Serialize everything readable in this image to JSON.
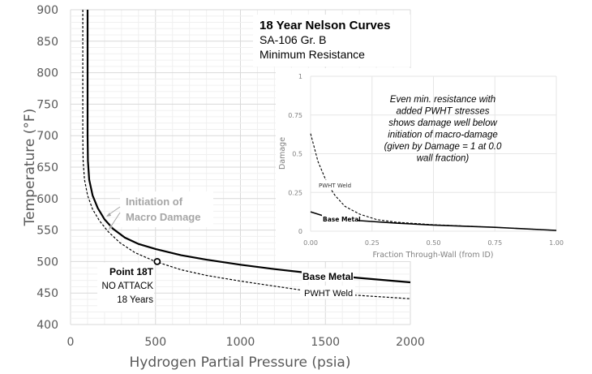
{
  "chart_data": [
    {
      "type": "line",
      "title": "18 Year Nelson Curves",
      "subtitle_lines": [
        "SA-106 Gr. B",
        "Minimum Resistance"
      ],
      "xlabel": "Hydrogen Partial Pressure (psia)",
      "ylabel": "Temperature (°F)",
      "xlim": [
        0,
        2000
      ],
      "ylim": [
        400,
        900
      ],
      "xticks": [
        "0",
        "500",
        "1000",
        "1500",
        "2000"
      ],
      "yticks": [
        "400",
        "450",
        "500",
        "550",
        "600",
        "650",
        "700",
        "750",
        "800",
        "850",
        "900"
      ],
      "grid": true,
      "series": [
        {
          "name": "Base Metal",
          "style": "solid",
          "x": [
            100,
            100,
            102,
            110,
            130,
            160,
            200,
            250,
            320,
            400,
            500,
            650,
            800,
            1000,
            1200,
            1400,
            1700,
            2000
          ],
          "y": [
            900,
            700,
            660,
            630,
            605,
            585,
            567,
            552,
            538,
            528,
            520,
            510,
            503,
            495,
            488,
            482,
            474,
            467
          ]
        },
        {
          "name": "PWHT Weld",
          "style": "dashed",
          "x": [
            72,
            72,
            74,
            82,
            100,
            130,
            170,
            220,
            290,
            380,
            500,
            650,
            800,
            1000,
            1200,
            1350,
            1650,
            2000
          ],
          "y": [
            900,
            700,
            660,
            630,
            605,
            583,
            565,
            548,
            530,
            514,
            500,
            487,
            478,
            469,
            461,
            455,
            447,
            441
          ]
        }
      ],
      "annotations": {
        "initiation": "Initiation of",
        "initiation2": "Macro Damage",
        "point_label": "Point 18T",
        "point_status": "NO ATTACK",
        "point_years": "18 Years",
        "base_label": "Base Metal",
        "weld_label": "PWHT Weld"
      },
      "point": {
        "x": 510,
        "y": 500
      }
    },
    {
      "type": "line",
      "xlabel": "Fraction Through-Wall (from ID)",
      "ylabel": "Damage",
      "xlim": [
        0,
        1
      ],
      "ylim": [
        0,
        1
      ],
      "xticks": [
        "0.00",
        "0.25",
        "0.50",
        "0.75",
        "1.00"
      ],
      "yticks": [
        "0",
        "0.25",
        "0.5",
        "0.75",
        "1"
      ],
      "grid": true,
      "series": [
        {
          "name": "PWHT Weld",
          "style": "dashed",
          "x": [
            0,
            0.03,
            0.07,
            0.1,
            0.14,
            0.2,
            0.27,
            0.35,
            0.5,
            0.75,
            1.0
          ],
          "y": [
            0.63,
            0.45,
            0.3,
            0.23,
            0.16,
            0.11,
            0.075,
            0.058,
            0.042,
            0.025,
            0.005
          ]
        },
        {
          "name": "Base Metal",
          "style": "solid",
          "x": [
            0,
            0.05,
            0.2,
            0.35,
            0.5,
            0.75,
            1.0
          ],
          "y": [
            0.125,
            0.1,
            0.068,
            0.052,
            0.04,
            0.025,
            0.005
          ]
        }
      ],
      "annotation": [
        "Even min. resistance with",
        "added PWHT stresses",
        "shows damage well below",
        "initiation of macro-damage",
        "(given by Damage = 1 at 0.0",
        "wall fraction)"
      ],
      "labels": {
        "weld": "PWHT Weld",
        "base": "Base Metal"
      }
    }
  ]
}
